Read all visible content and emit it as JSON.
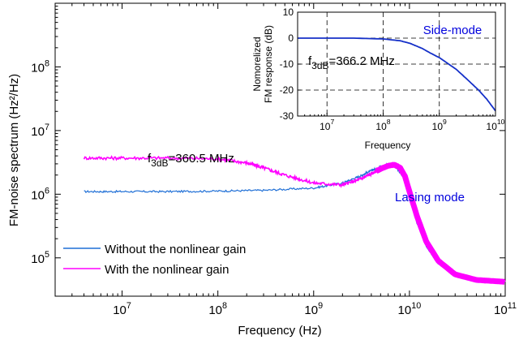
{
  "colors": {
    "without": "#1f6fd6",
    "with": "#ff00ff",
    "inset_line": "#1530c8",
    "mode_label": "#0000dd"
  },
  "chart_data": [
    {
      "type": "line",
      "x_scale": "log",
      "y_scale": "log",
      "xlabel": "Frequency (Hz)",
      "ylabel": "FM-noise spectrum (Hz²/Hz)",
      "xlim": [
        2000000,
        100000000000
      ],
      "ylim": [
        25000,
        1000000000
      ],
      "x_ticks": [
        10000000,
        100000000,
        1000000000,
        10000000000,
        100000000000
      ],
      "x_tick_labels": [
        {
          "base": "10",
          "exp": "7"
        },
        {
          "base": "10",
          "exp": "8"
        },
        {
          "base": "10",
          "exp": "9"
        },
        {
          "base": "10",
          "exp": "10"
        },
        {
          "base": "10",
          "exp": "11"
        }
      ],
      "y_ticks": [
        100000,
        1000000,
        10000000,
        100000000
      ],
      "y_tick_labels": [
        {
          "base": "10",
          "exp": "5"
        },
        {
          "base": "10",
          "exp": "6"
        },
        {
          "base": "10",
          "exp": "7"
        },
        {
          "base": "10",
          "exp": "8"
        }
      ],
      "legend_position": "bottom-left",
      "series": [
        {
          "name": "Without the nonlinear gain",
          "color_key": "without",
          "x": [
            4000000,
            10000000,
            30000000,
            100000000,
            300000000,
            1000000000,
            2000000000,
            3000000000,
            4000000000,
            5000000000,
            6000000000,
            7000000000,
            8000000000,
            9000000000,
            10000000000,
            12000000000,
            15000000000,
            20000000000,
            30000000000,
            50000000000,
            100000000000
          ],
          "y": [
            1100000,
            1100000,
            1100000,
            1120000,
            1150000,
            1250000,
            1500000,
            1900000,
            2350000,
            2700000,
            2900000,
            2800000,
            2200000,
            1600000,
            900000,
            350000,
            150000,
            80000,
            55000,
            45000,
            42000
          ]
        },
        {
          "name": "With the nonlinear gain",
          "color_key": "with",
          "x": [
            4000000,
            10000000,
            30000000,
            100000000,
            200000000,
            300000000,
            500000000,
            1000000000,
            2000000000,
            3000000000,
            4000000000,
            5000000000,
            6000000000,
            7000000000,
            8000000000,
            9000000000,
            10000000000,
            12000000000,
            15000000000,
            20000000000,
            30000000000,
            50000000000,
            100000000000
          ],
          "y": [
            3700000,
            3700000,
            3700000,
            3600000,
            3100000,
            2600000,
            2000000,
            1500000,
            1400000,
            1700000,
            2100000,
            2500000,
            2800000,
            2900000,
            2600000,
            1900000,
            1100000,
            450000,
            180000,
            90000,
            55000,
            45000,
            42000
          ]
        }
      ],
      "annotations": [
        {
          "text": "f",
          "sub": "3dB",
          "rest": "=360.5 MHz"
        },
        {
          "text": "Lasing mode"
        }
      ]
    },
    {
      "type": "line",
      "x_scale": "log",
      "xlabel": "Frequency",
      "ylabel": [
        "Nomorelized",
        "FM response (dB)"
      ],
      "xlim": [
        3000000,
        10000000000
      ],
      "ylim": [
        -30,
        10
      ],
      "x_ticks": [
        10000000,
        100000000,
        1000000000,
        10000000000
      ],
      "x_tick_labels": [
        {
          "base": "10",
          "exp": "7"
        },
        {
          "base": "10",
          "exp": "8"
        },
        {
          "base": "10",
          "exp": "9"
        },
        {
          "base": "10",
          "exp": "10"
        }
      ],
      "y_ticks": [
        10,
        0,
        -10,
        -20,
        -30
      ],
      "y_tick_labels": [
        "10",
        "0",
        "-10",
        "-20",
        "-30"
      ],
      "grid": "dashed at x = 1e7, 1e8, 1e9 and y = 0, -10, -20",
      "series": [
        {
          "color_key": "inset_line",
          "x": [
            3000000,
            10000000,
            30000000,
            100000000,
            200000000,
            300000000,
            500000000,
            700000000,
            1000000000,
            2000000000,
            3000000000,
            5000000000,
            7000000000,
            10000000000
          ],
          "y": [
            0,
            0,
            0,
            -0.3,
            -1,
            -2,
            -4,
            -5.8,
            -7.5,
            -12,
            -15.5,
            -20,
            -23.5,
            -28
          ]
        }
      ],
      "annotations": [
        {
          "text": "f",
          "sub": "3dB",
          "rest": "=366.2 MHz"
        },
        {
          "text": "Side-mode"
        }
      ]
    }
  ]
}
